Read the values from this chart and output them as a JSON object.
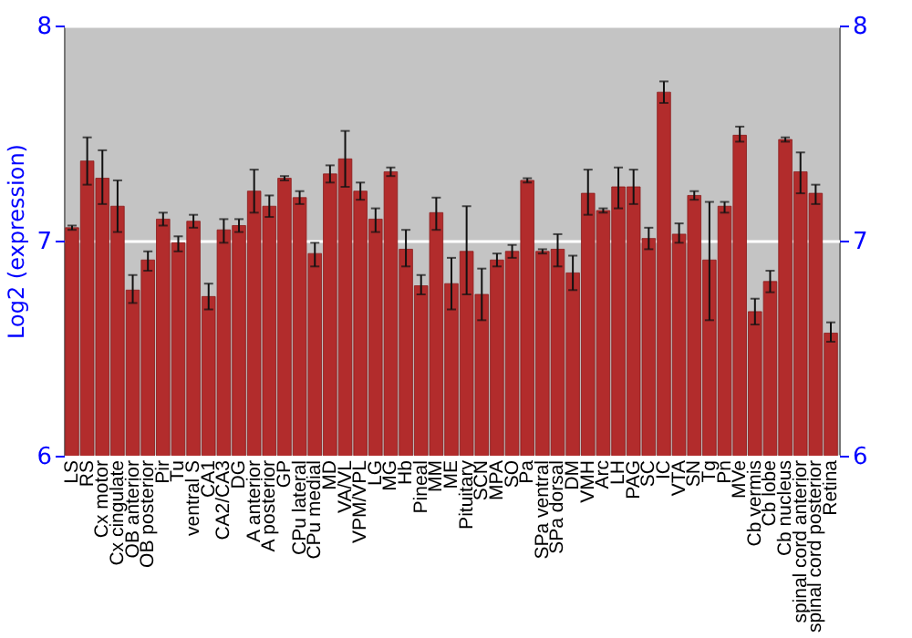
{
  "chart_data": {
    "type": "bar",
    "ylabel": "Log2 (expression)",
    "categories": [
      "LS",
      "RS",
      "Cx motor",
      "Cx cingulate",
      "OB anterior",
      "OB posterior",
      "Pir",
      "Tu",
      "ventral S",
      "CA1",
      "CA2/CA3",
      "DG",
      "A anterior",
      "A posterior",
      "GP",
      "CPu lateral",
      "CPu medial",
      "MD",
      "VA/VL",
      "VPM/VPL",
      "LG",
      "MG",
      "Hb",
      "Pineal",
      "MM",
      "ME",
      "Pituitary",
      "SCN",
      "MPA",
      "SO",
      "Pa",
      "SPa ventral",
      "SPa dorsal",
      "DM",
      "VMH",
      "Arc",
      "LH",
      "PAG",
      "SC",
      "IC",
      "VTA",
      "SN",
      "Tg",
      "Pn",
      "MVe",
      "Cb vermis",
      "Cb lobe",
      "Cb nucleus",
      "spinal cord anterior",
      "spinal cord posterior",
      "Retina"
    ],
    "values": [
      7.06,
      7.37,
      7.29,
      7.16,
      6.77,
      6.91,
      7.1,
      6.99,
      7.09,
      6.74,
      7.05,
      7.07,
      7.23,
      7.16,
      7.29,
      7.2,
      6.94,
      7.31,
      7.38,
      7.23,
      7.1,
      7.32,
      6.96,
      6.79,
      7.13,
      6.8,
      6.95,
      6.75,
      6.91,
      6.95,
      7.28,
      6.95,
      6.96,
      6.85,
      7.22,
      7.14,
      7.25,
      7.25,
      7.01,
      7.69,
      7.03,
      7.21,
      6.91,
      7.16,
      7.49,
      6.67,
      6.81,
      7.47,
      7.32,
      7.22,
      6.57
    ],
    "errors": [
      [
        7.05,
        7.07
      ],
      [
        7.26,
        7.48
      ],
      [
        7.17,
        7.42
      ],
      [
        7.04,
        7.28
      ],
      [
        6.71,
        6.84
      ],
      [
        6.86,
        6.95
      ],
      [
        7.07,
        7.13
      ],
      [
        6.95,
        7.02
      ],
      [
        7.06,
        7.12
      ],
      [
        6.68,
        6.8
      ],
      [
        6.99,
        7.1
      ],
      [
        7.04,
        7.1
      ],
      [
        7.13,
        7.33
      ],
      [
        7.11,
        7.21
      ],
      [
        7.28,
        7.3
      ],
      [
        7.17,
        7.23
      ],
      [
        6.88,
        6.99
      ],
      [
        7.27,
        7.35
      ],
      [
        7.25,
        7.51
      ],
      [
        7.19,
        7.27
      ],
      [
        7.04,
        7.15
      ],
      [
        7.3,
        7.34
      ],
      [
        6.88,
        7.05
      ],
      [
        6.75,
        6.84
      ],
      [
        7.05,
        7.2
      ],
      [
        6.68,
        6.92
      ],
      [
        6.75,
        7.16
      ],
      [
        6.63,
        6.87
      ],
      [
        6.88,
        6.94
      ],
      [
        6.92,
        6.98
      ],
      [
        7.27,
        7.29
      ],
      [
        6.94,
        6.96
      ],
      [
        6.88,
        7.03
      ],
      [
        6.77,
        6.93
      ],
      [
        7.12,
        7.33
      ],
      [
        7.13,
        7.15
      ],
      [
        7.15,
        7.34
      ],
      [
        7.17,
        7.33
      ],
      [
        6.96,
        7.06
      ],
      [
        7.64,
        7.74
      ],
      [
        6.99,
        7.08
      ],
      [
        7.19,
        7.23
      ],
      [
        6.63,
        7.18
      ],
      [
        7.13,
        7.18
      ],
      [
        7.46,
        7.53
      ],
      [
        6.61,
        6.73
      ],
      [
        6.76,
        6.86
      ],
      [
        7.46,
        7.48
      ],
      [
        7.22,
        7.41
      ],
      [
        7.17,
        7.26
      ],
      [
        6.53,
        6.62
      ]
    ],
    "color": "#b22c2c",
    "ylim": [
      6,
      8
    ],
    "yticks": [
      6,
      7,
      8
    ],
    "y2lim": [
      6,
      8
    ],
    "y2ticks": [
      6,
      7,
      8
    ],
    "grid": "y"
  }
}
